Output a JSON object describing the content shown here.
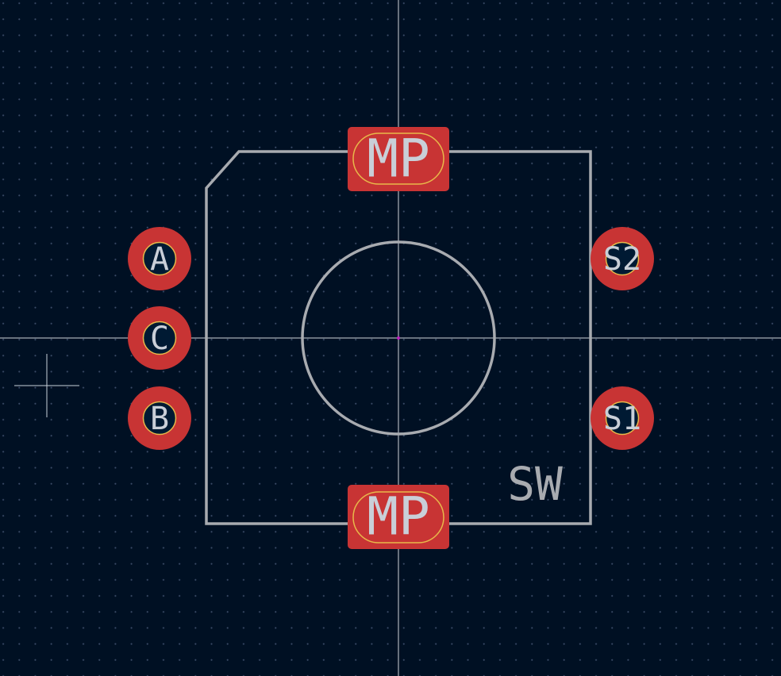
{
  "footprint": {
    "reference": "SW",
    "pads": [
      {
        "id": "mp-top",
        "label": "MP"
      },
      {
        "id": "a",
        "label": "A"
      },
      {
        "id": "c",
        "label": "C"
      },
      {
        "id": "b",
        "label": "B"
      },
      {
        "id": "s2",
        "label": "S2"
      },
      {
        "id": "s1",
        "label": "S1"
      },
      {
        "id": "mp-bottom",
        "label": "MP"
      }
    ]
  },
  "colors": {
    "background": "#001023",
    "pad": "#c83434",
    "pad_outline": "#e8b84a",
    "silkscreen": "#a8abb0",
    "crosshair": "#d0d4da",
    "origin": "#c020c0"
  }
}
